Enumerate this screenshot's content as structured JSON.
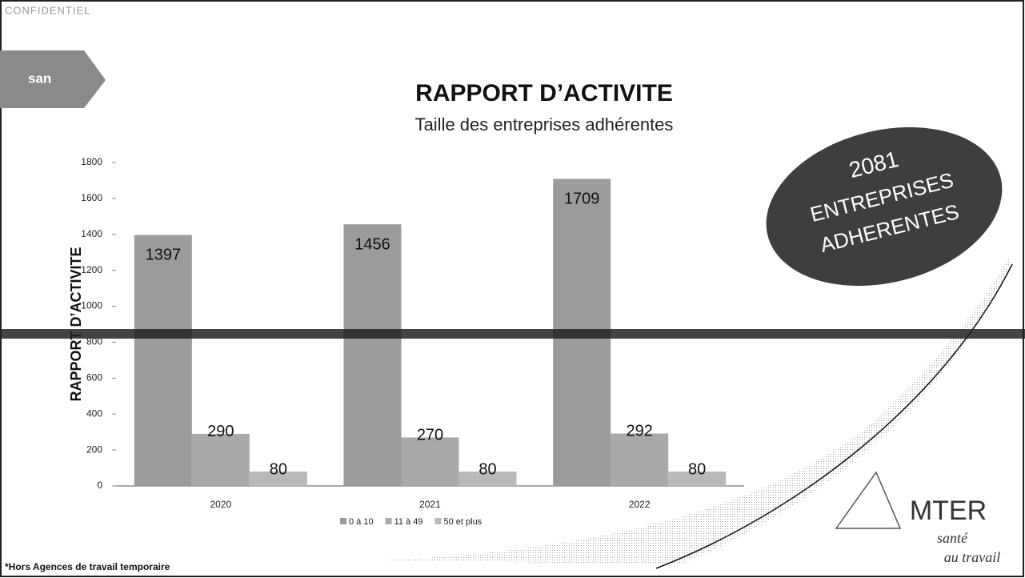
{
  "header": {
    "confidential": "CONFIDENTIEL",
    "tab": "san"
  },
  "chart_data": {
    "type": "bar",
    "title": "RAPPORT D’ACTIVITE",
    "subtitle": "Taille des entreprises adhérentes",
    "y_label": "RAPPORT D’ACTIVITE",
    "categories": [
      "2020",
      "2021",
      "2022"
    ],
    "series": [
      {
        "name": "0 à 10",
        "color": "#9b9b9b",
        "values": [
          1397,
          1456,
          1709
        ]
      },
      {
        "name": "11 à 49",
        "color": "#a9a9a9",
        "values": [
          290,
          270,
          292
        ]
      },
      {
        "name": "50 et plus",
        "color": "#b9b9b9",
        "values": [
          80,
          80,
          80
        ]
      }
    ],
    "ylim": [
      0,
      1800
    ],
    "yticks": [
      0,
      200,
      400,
      600,
      800,
      1000,
      1200,
      1400,
      1600,
      1800
    ]
  },
  "badge": {
    "count": 2081,
    "lines": [
      "ENTREPRISES",
      "ADHERENTES"
    ]
  },
  "footnote": "*Hors Agences de travail temporaire",
  "logo": {
    "name": "MTER",
    "tagline": [
      "santé",
      "au travail"
    ]
  }
}
